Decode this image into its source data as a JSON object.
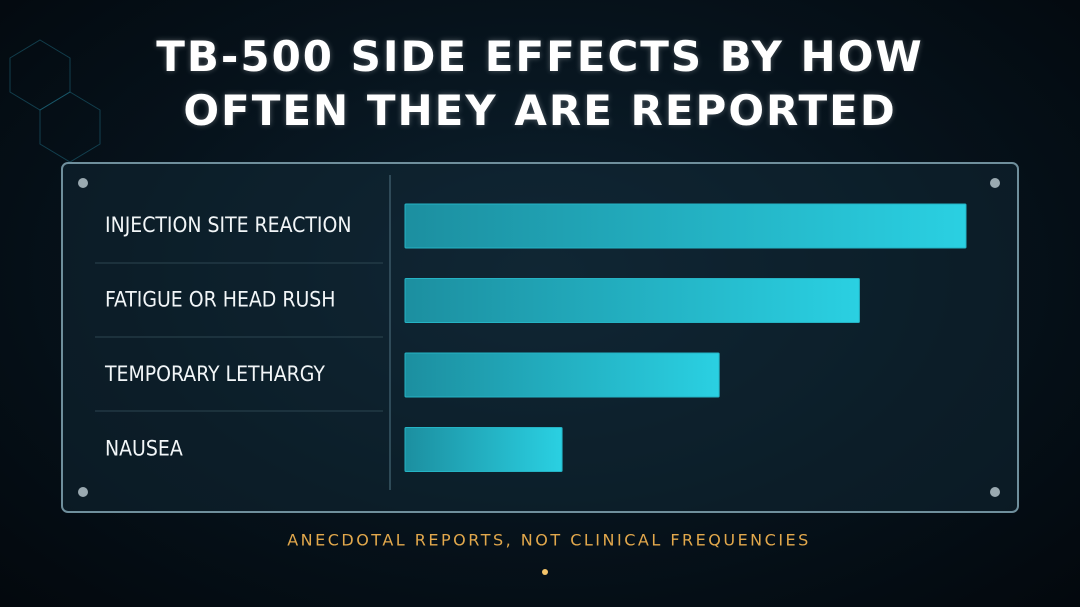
{
  "chart_data": {
    "type": "bar",
    "orientation": "horizontal",
    "title": "TB-500 SIDE EFFECTS BY HOW OFTEN THEY ARE REPORTED",
    "categories": [
      "INJECTION SITE REACTION",
      "FATIGUE OR HEAD RUSH",
      "TEMPORARY LETHARGY",
      "NAUSEA"
    ],
    "values": [
      100,
      81,
      56,
      28
    ],
    "color": "#25b3c4",
    "xlim": [
      0,
      100
    ],
    "annotation": "ANECDOTAL REPORTS, NOT CLINICAL FREQUENCIES"
  }
}
